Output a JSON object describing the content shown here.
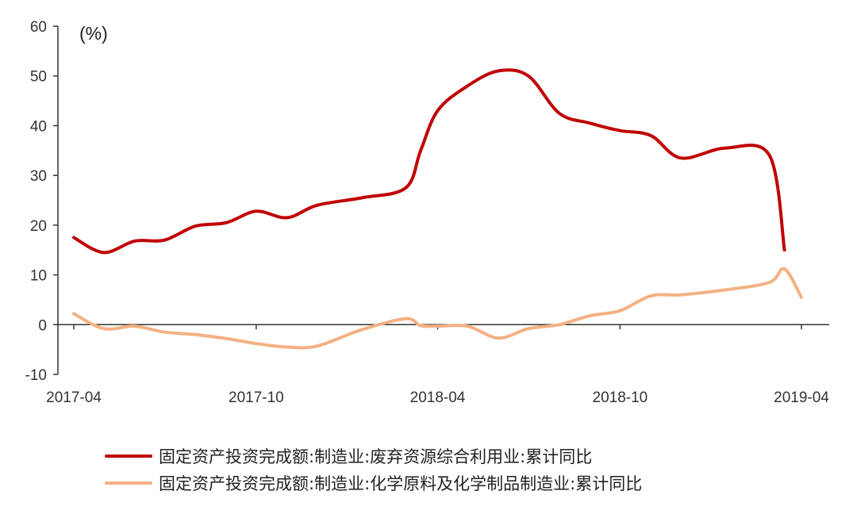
{
  "chart_data": {
    "type": "line",
    "unit_label": "(%)",
    "ylim": [
      -10,
      60
    ],
    "y_ticks": [
      -10,
      0,
      10,
      20,
      30,
      40,
      50,
      60
    ],
    "x_range": [
      "2017-04",
      "2019-04"
    ],
    "x_ticks": [
      "2017-04",
      "2017-10",
      "2018-04",
      "2018-10",
      "2019-04"
    ],
    "legend_position": "bottom",
    "grid": false,
    "series": [
      {
        "name": "固定资产投资完成额:制造业:废弃资源综合利用业:累计同比",
        "color": "#C00000",
        "points": [
          [
            "2017-04-01",
            17.5
          ],
          [
            "2017-05-01",
            14.5
          ],
          [
            "2017-06-01",
            16.8
          ],
          [
            "2017-07-01",
            17.0
          ],
          [
            "2017-08-01",
            19.8
          ],
          [
            "2017-09-01",
            20.5
          ],
          [
            "2017-10-01",
            22.8
          ],
          [
            "2017-11-01",
            21.5
          ],
          [
            "2017-12-01",
            24.0
          ],
          [
            "2018-01-15",
            25.5
          ],
          [
            "2018-02-28",
            27.5
          ],
          [
            "2018-03-15",
            35.0
          ],
          [
            "2018-04-01",
            43.0
          ],
          [
            "2018-05-01",
            48.0
          ],
          [
            "2018-06-01",
            51.0
          ],
          [
            "2018-07-01",
            50.0
          ],
          [
            "2018-08-01",
            42.5
          ],
          [
            "2018-09-01",
            40.5
          ],
          [
            "2018-10-01",
            39.0
          ],
          [
            "2018-11-01",
            38.0
          ],
          [
            "2018-12-01",
            33.5
          ],
          [
            "2019-01-15",
            35.5
          ],
          [
            "2019-02-28",
            34.0
          ],
          [
            "2019-03-15",
            15.0
          ]
        ]
      },
      {
        "name": "固定资产投资完成额:制造业:化学原料及化学制品制造业:累计同比",
        "color": "#F4B183",
        "points": [
          [
            "2017-04-01",
            2.2
          ],
          [
            "2017-05-01",
            -0.8
          ],
          [
            "2017-06-01",
            -0.3
          ],
          [
            "2017-07-01",
            -1.5
          ],
          [
            "2017-08-01",
            -2.0
          ],
          [
            "2017-09-01",
            -2.8
          ],
          [
            "2017-10-01",
            -3.8
          ],
          [
            "2017-11-01",
            -4.5
          ],
          [
            "2017-12-01",
            -4.3
          ],
          [
            "2018-01-15",
            -1.0
          ],
          [
            "2018-02-28",
            1.2
          ],
          [
            "2018-03-15",
            -0.2
          ],
          [
            "2018-04-01",
            -0.3
          ],
          [
            "2018-05-01",
            -0.3
          ],
          [
            "2018-06-01",
            -2.7
          ],
          [
            "2018-07-01",
            -0.8
          ],
          [
            "2018-08-01",
            0.0
          ],
          [
            "2018-09-01",
            1.8
          ],
          [
            "2018-10-01",
            2.8
          ],
          [
            "2018-11-01",
            5.8
          ],
          [
            "2018-12-01",
            6.0
          ],
          [
            "2019-01-15",
            7.0
          ],
          [
            "2019-02-28",
            8.5
          ],
          [
            "2019-03-15",
            11.2
          ],
          [
            "2019-04-01",
            5.5
          ]
        ]
      }
    ]
  }
}
